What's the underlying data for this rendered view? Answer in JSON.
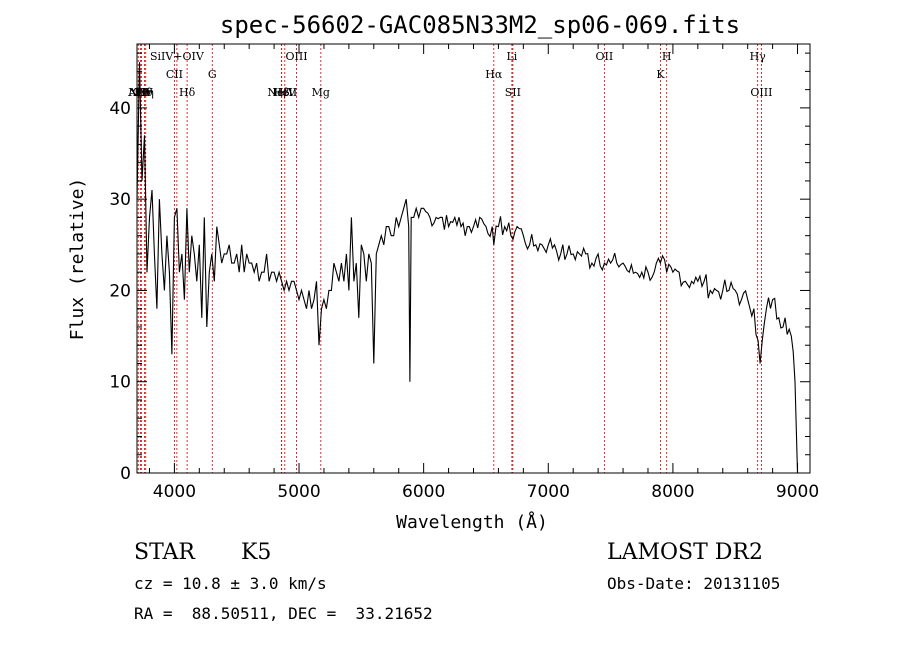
{
  "chart_data": {
    "type": "line",
    "title": "spec-56602-GAC085N33M2_sp06-069.fits",
    "xlabel": "Wavelength (Å)",
    "ylabel": "Flux (relative)",
    "xlim": [
      3700,
      9100
    ],
    "ylim": [
      0,
      47
    ],
    "x_ticks": [
      4000,
      5000,
      6000,
      7000,
      8000,
      9000
    ],
    "y_ticks": [
      0,
      10,
      20,
      30,
      40
    ],
    "grid": false,
    "line_color": "#000000",
    "marker_color": "#cc0000",
    "series": [
      {
        "x": [
          3700,
          3720,
          3740,
          3760,
          3780,
          3800,
          3820,
          3840,
          3860,
          3880,
          3900,
          3920,
          3940,
          3960,
          3980,
          4000,
          4020,
          4040,
          4060,
          4080,
          4100,
          4120,
          4140,
          4160,
          4180,
          4200,
          4220,
          4240,
          4260,
          4280,
          4300,
          4320,
          4340,
          4360,
          4380,
          4400,
          4420,
          4440,
          4460,
          4480,
          4500,
          4520,
          4540,
          4560,
          4580,
          4600,
          4620,
          4640,
          4660,
          4680,
          4700,
          4720,
          4740,
          4760,
          4780,
          4800,
          4820,
          4840,
          4860,
          4880,
          4900,
          4920,
          4940,
          4960,
          4980,
          5000,
          5020,
          5040,
          5060,
          5080,
          5100,
          5120,
          5140,
          5160,
          5180,
          5200,
          5220,
          5240,
          5260,
          5280,
          5300,
          5320,
          5340,
          5360,
          5380,
          5400,
          5420,
          5440,
          5460,
          5480,
          5500,
          5520,
          5540,
          5560,
          5580,
          5600,
          5620,
          5640,
          5660,
          5680,
          5700,
          5720,
          5740,
          5760,
          5780,
          5800,
          5820,
          5840,
          5860,
          5880,
          5890,
          5900,
          5920,
          5940,
          5960,
          5980,
          6000,
          6050,
          6100,
          6150,
          6200,
          6250,
          6300,
          6350,
          6400,
          6450,
          6500,
          6550,
          6563,
          6600,
          6650,
          6700,
          6750,
          6800,
          6850,
          6900,
          6950,
          7000,
          7050,
          7100,
          7150,
          7200,
          7250,
          7300,
          7350,
          7400,
          7450,
          7500,
          7550,
          7600,
          7650,
          7700,
          7750,
          7800,
          7850,
          7900,
          7950,
          8000,
          8050,
          8100,
          8150,
          8200,
          8250,
          8300,
          8350,
          8400,
          8450,
          8500,
          8550,
          8600,
          8650,
          8700,
          8750,
          8800,
          8850,
          8900,
          8950,
          8980,
          9000
        ],
        "y": [
          30,
          45,
          32,
          37,
          22,
          28,
          31,
          24,
          18,
          30,
          24,
          20,
          26,
          22,
          13,
          28,
          29,
          22,
          24,
          19,
          29,
          22,
          26,
          24,
          21,
          25,
          17,
          28,
          16,
          22,
          24,
          21,
          27,
          25,
          23,
          24,
          24,
          25,
          23,
          23,
          24,
          22,
          25,
          22,
          24,
          23,
          23,
          22,
          23,
          21,
          22,
          22,
          24,
          21,
          22,
          22,
          21,
          22,
          21,
          20,
          21,
          20,
          21,
          21,
          20,
          19,
          20,
          19,
          18,
          20,
          18,
          19,
          21,
          14,
          18,
          19,
          18,
          20,
          20,
          23,
          22,
          21,
          23,
          21,
          24,
          20,
          28,
          21,
          23,
          17,
          25,
          24,
          21,
          24,
          23,
          12,
          24,
          25,
          26,
          25,
          27,
          27,
          26,
          26,
          28,
          27,
          28,
          29,
          30,
          27,
          10,
          28,
          28,
          29,
          28,
          29,
          29,
          28,
          28,
          28,
          27,
          28,
          27,
          27,
          27,
          28,
          27,
          27,
          25,
          27,
          27,
          26,
          27,
          26,
          25,
          25,
          25,
          25,
          25,
          24,
          24,
          24,
          24,
          24,
          23,
          24,
          23,
          23,
          23,
          23,
          22,
          22,
          22,
          22,
          22,
          23,
          22,
          22,
          22,
          21,
          21,
          21,
          21,
          20,
          20,
          20,
          20,
          20,
          19,
          19,
          18,
          12,
          18,
          19,
          17,
          17,
          15,
          10,
          0
        ]
      }
    ],
    "line_markers": [
      {
        "name": "AlII",
        "x": 3710,
        "row": "lower"
      },
      {
        "name": "NeV",
        "x": 3727,
        "row": "lower"
      },
      {
        "name": "OII",
        "x": 3735,
        "row": "lower"
      },
      {
        "name": "Hθ",
        "x": 3760,
        "row": "lower"
      },
      {
        "name": "Hη",
        "x": 3770,
        "row": "lower"
      },
      {
        "name": "SiIV+OIV",
        "x": 4020,
        "row": "upper"
      },
      {
        "name": "CII",
        "x": 4000,
        "row": "middle"
      },
      {
        "name": "Hδ",
        "x": 4102,
        "row": "lower"
      },
      {
        "name": "G",
        "x": 4304,
        "row": "middle"
      },
      {
        "name": "NeIV",
        "x": 4860,
        "row": "lower"
      },
      {
        "name": "Hβ",
        "x": 4861,
        "row": "lower"
      },
      {
        "name": "HeII",
        "x": 4886,
        "row": "lower"
      },
      {
        "name": "OIII",
        "x": 4980,
        "row": "upper"
      },
      {
        "name": "Mg",
        "x": 5175,
        "row": "lower"
      },
      {
        "name": "Hα",
        "x": 6563,
        "row": "middle"
      },
      {
        "name": "Li",
        "x": 6708,
        "row": "upper"
      },
      {
        "name": "SII",
        "x": 6716,
        "row": "lower"
      },
      {
        "name": "OII",
        "x": 7450,
        "row": "upper"
      },
      {
        "name": "K",
        "x": 7900,
        "row": "middle"
      },
      {
        "name": "H",
        "x": 7950,
        "row": "upper"
      },
      {
        "name": "Hγ",
        "x": 8680,
        "row": "upper"
      },
      {
        "name": "OIII",
        "x": 8710,
        "row": "lower"
      }
    ]
  },
  "info": {
    "object_class": "STAR",
    "subclass": "K5",
    "redshift": "cz = 10.8 ± 3.0 km/s",
    "coordinates": "RA =  88.50511, DEC =  33.21652",
    "survey": "LAMOST DR2",
    "obs_date": "Obs-Date: 20131105"
  }
}
